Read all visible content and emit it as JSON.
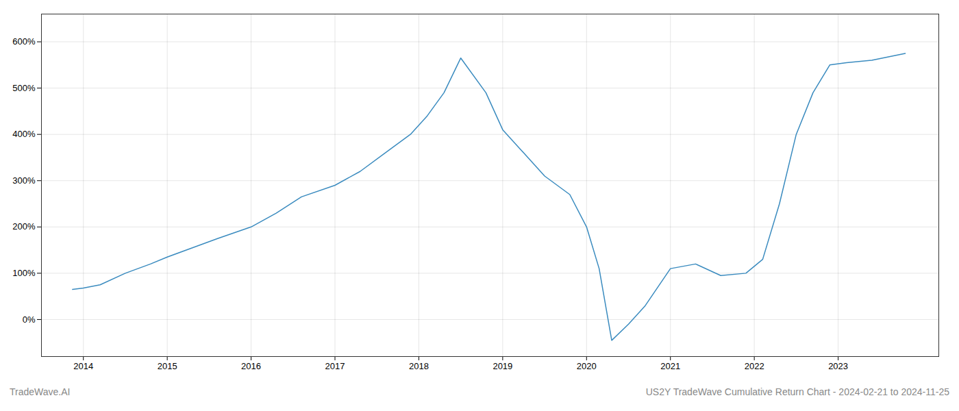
{
  "chart_data": {
    "type": "line",
    "title": "US2Y TradeWave Cumulative Return Chart - 2024-02-21 to 2024-11-25",
    "annotations": [
      "TradeWave.AI"
    ],
    "x": [
      2013.87,
      2014.0,
      2014.2,
      2014.5,
      2014.8,
      2015.0,
      2015.3,
      2015.6,
      2016.0,
      2016.3,
      2016.6,
      2017.0,
      2017.3,
      2017.6,
      2017.9,
      2018.1,
      2018.3,
      2018.5,
      2018.8,
      2019.0,
      2019.2,
      2019.5,
      2019.8,
      2020.0,
      2020.15,
      2020.3,
      2020.5,
      2020.7,
      2021.0,
      2021.3,
      2021.6,
      2021.9,
      2022.1,
      2022.3,
      2022.5,
      2022.7,
      2022.9,
      2023.1,
      2023.4,
      2023.8
    ],
    "values": [
      65,
      68,
      75,
      100,
      120,
      135,
      155,
      175,
      200,
      230,
      265,
      290,
      320,
      360,
      400,
      440,
      490,
      565,
      490,
      410,
      370,
      310,
      270,
      200,
      110,
      -45,
      -10,
      30,
      110,
      120,
      95,
      100,
      130,
      250,
      400,
      490,
      550,
      555,
      560,
      575
    ],
    "color": "#3a8bbf",
    "xlim": [
      2013.5,
      2024.2
    ],
    "xticks": [
      2014,
      2015,
      2016,
      2017,
      2018,
      2019,
      2020,
      2021,
      2022,
      2023
    ],
    "ylim": [
      -80,
      660
    ],
    "yticks": [
      {
        "value": 0,
        "label": "0%"
      },
      {
        "value": 100,
        "label": "100%"
      },
      {
        "value": 200,
        "label": "200%"
      },
      {
        "value": 300,
        "label": "300%"
      },
      {
        "value": 400,
        "label": "400%"
      },
      {
        "value": 500,
        "label": "500%"
      },
      {
        "value": 600,
        "label": "600%"
      }
    ],
    "grid": true
  }
}
